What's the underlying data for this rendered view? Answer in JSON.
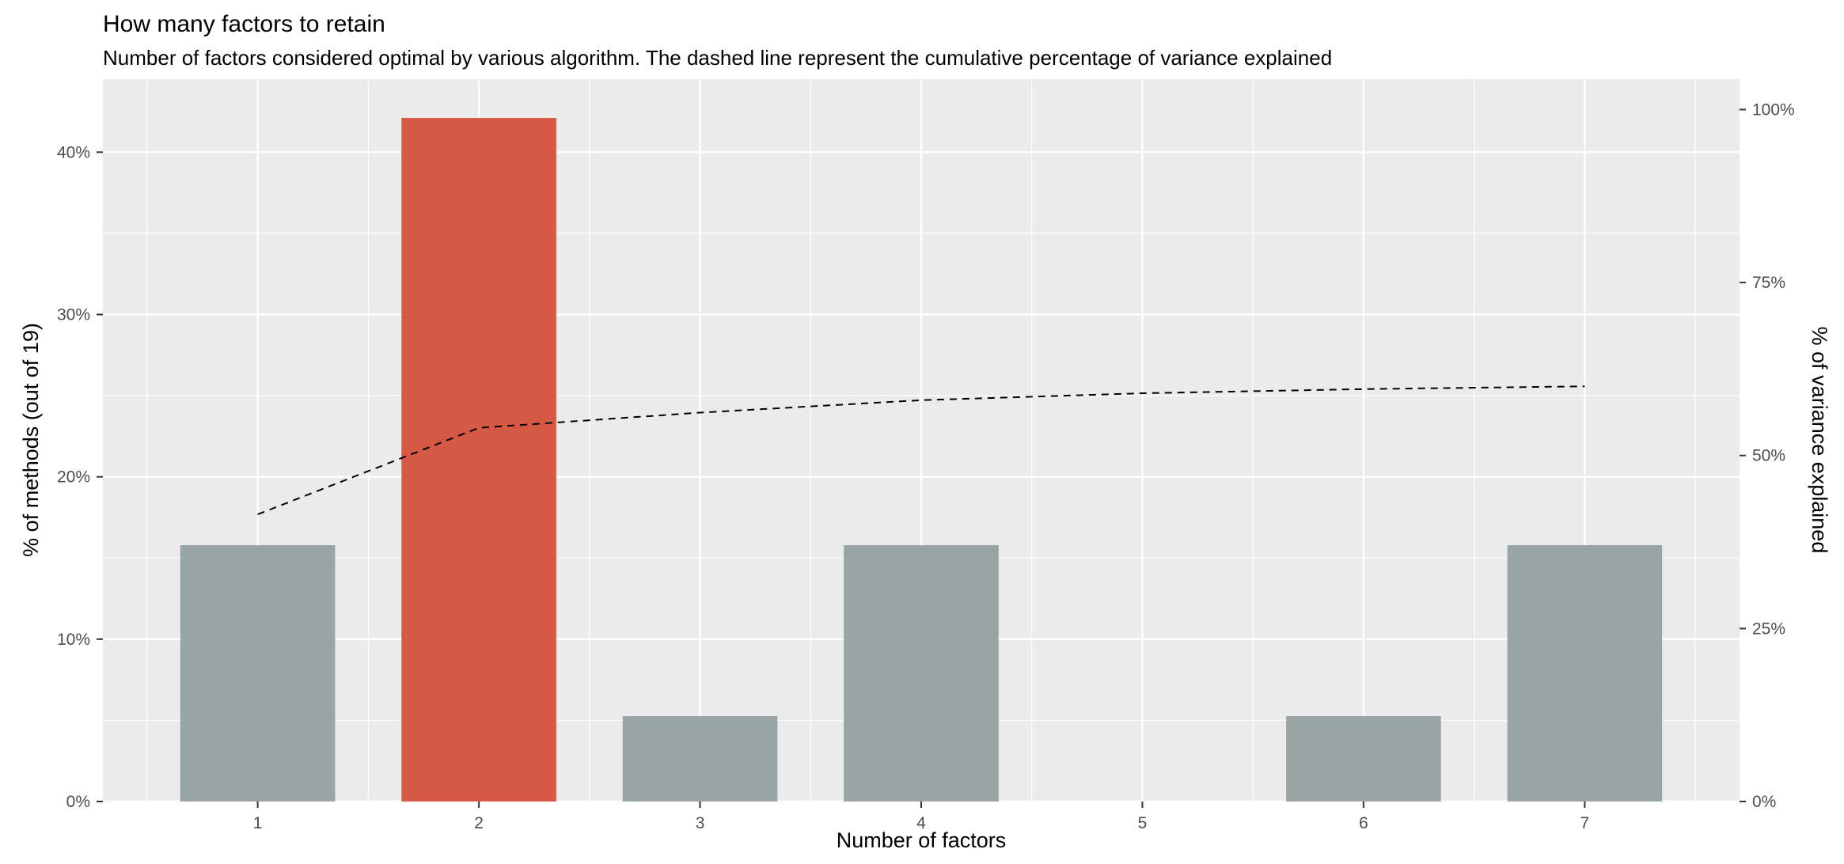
{
  "chart_data": {
    "type": "bar",
    "title": "How many factors to retain",
    "subtitle": "Number of factors considered optimal by various algorithm. The dashed line represent the cumulative percentage of variance explained",
    "xlabel": "Number of factors",
    "ylabel": "% of methods (out of 19)",
    "y2label": "% of variance explained",
    "categories": [
      "1",
      "2",
      "3",
      "4",
      "5",
      "6",
      "7"
    ],
    "series": [
      {
        "values": [
          15.79,
          42.11,
          5.26,
          15.79,
          0,
          5.26,
          15.79
        ]
      }
    ],
    "highlight_category": "2",
    "line_series": {
      "style": "dashed",
      "axis": "secondary",
      "values": [
        41.5,
        54,
        56.2,
        58,
        59,
        59.6,
        60
      ]
    },
    "ylim": [
      0,
      44.5
    ],
    "y_ticks": [
      "0%",
      "10%",
      "20%",
      "30%",
      "40%"
    ],
    "y_tick_values": [
      0,
      10,
      20,
      30,
      40
    ],
    "y2lim": [
      0,
      104.4
    ],
    "y2_ticks": [
      "0%",
      "25%",
      "50%",
      "75%",
      "100%"
    ],
    "y2_tick_values": [
      0,
      25,
      50,
      75,
      100
    ],
    "grid": true,
    "legend": "none",
    "colors": {
      "bar": "#99a5a5",
      "highlight": "#d65945",
      "panel": "#ebebeb",
      "grid": "#ffffff",
      "line": "#000000"
    }
  }
}
